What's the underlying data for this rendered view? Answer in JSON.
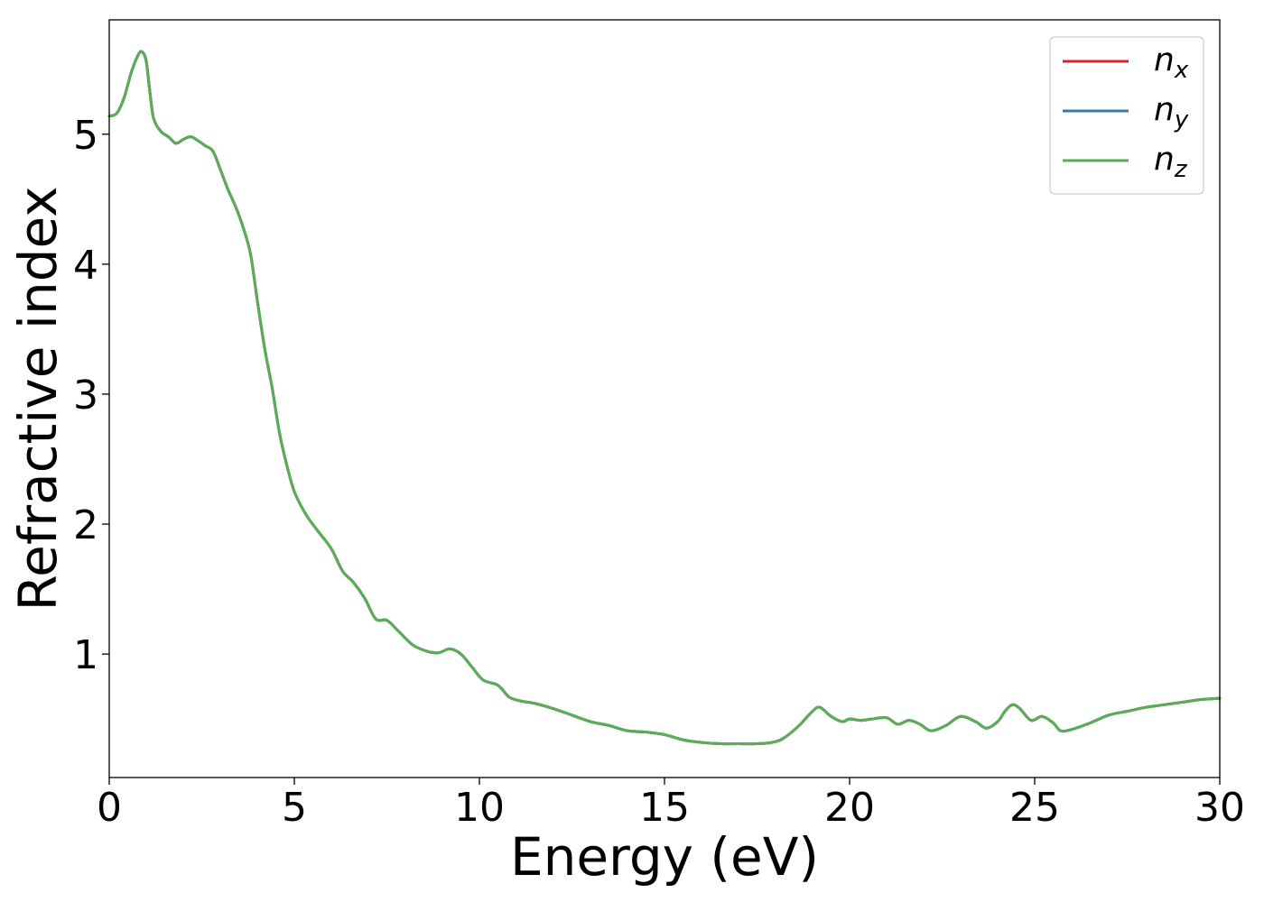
{
  "chart_data": {
    "type": "line",
    "title": "",
    "xlabel": "Energy (eV)",
    "ylabel": "Refractive index",
    "xlim": [
      0,
      30
    ],
    "ylim": [
      0.05,
      5.88
    ],
    "x_ticks": [
      "0",
      "5",
      "10",
      "15",
      "20",
      "25",
      "30"
    ],
    "y_ticks": [
      "1",
      "2",
      "3",
      "4",
      "5"
    ],
    "grid": false,
    "legend_position": "top-right",
    "x": [
      0,
      0.2,
      0.4,
      0.6,
      0.8,
      0.9,
      1.0,
      1.1,
      1.2,
      1.4,
      1.6,
      1.8,
      2.0,
      2.2,
      2.4,
      2.6,
      2.8,
      3.0,
      3.2,
      3.5,
      3.8,
      4.0,
      4.2,
      4.4,
      4.6,
      4.8,
      5.0,
      5.3,
      5.6,
      6.0,
      6.3,
      6.6,
      6.9,
      7.2,
      7.5,
      7.8,
      8.2,
      8.6,
      8.9,
      9.2,
      9.5,
      9.8,
      10.1,
      10.5,
      10.8,
      11.1,
      11.5,
      12.0,
      12.5,
      13.0,
      13.5,
      14.0,
      14.5,
      15.0,
      15.5,
      16.0,
      16.5,
      17.0,
      17.5,
      17.9,
      18.2,
      18.6,
      19.0,
      19.2,
      19.5,
      19.8,
      20.0,
      20.3,
      20.6,
      21.0,
      21.3,
      21.6,
      21.9,
      22.2,
      22.6,
      23.0,
      23.4,
      23.7,
      24.0,
      24.2,
      24.4,
      24.6,
      24.9,
      25.2,
      25.5,
      25.7,
      26.0,
      26.5,
      27.0,
      27.5,
      28.0,
      28.5,
      29.0,
      29.5,
      30.0
    ],
    "series": [
      {
        "name": "n_x",
        "label_base": "n",
        "label_sub": "x",
        "color": "#d62728",
        "values": [
          5.14,
          5.16,
          5.28,
          5.48,
          5.62,
          5.63,
          5.56,
          5.32,
          5.12,
          5.02,
          4.98,
          4.93,
          4.96,
          4.98,
          4.95,
          4.91,
          4.87,
          4.73,
          4.58,
          4.38,
          4.1,
          3.72,
          3.35,
          3.05,
          2.7,
          2.45,
          2.25,
          2.08,
          1.96,
          1.81,
          1.64,
          1.55,
          1.43,
          1.27,
          1.26,
          1.18,
          1.07,
          1.02,
          1.01,
          1.04,
          1.0,
          0.9,
          0.8,
          0.76,
          0.67,
          0.64,
          0.62,
          0.58,
          0.53,
          0.48,
          0.45,
          0.41,
          0.4,
          0.38,
          0.34,
          0.32,
          0.31,
          0.31,
          0.31,
          0.32,
          0.35,
          0.44,
          0.56,
          0.59,
          0.52,
          0.48,
          0.5,
          0.49,
          0.5,
          0.51,
          0.46,
          0.49,
          0.46,
          0.41,
          0.45,
          0.52,
          0.48,
          0.43,
          0.48,
          0.56,
          0.61,
          0.58,
          0.49,
          0.52,
          0.47,
          0.41,
          0.42,
          0.47,
          0.53,
          0.56,
          0.59,
          0.61,
          0.63,
          0.65,
          0.66
        ]
      },
      {
        "name": "n_y",
        "label_base": "n",
        "label_sub": "y",
        "color": "#3a7aaa",
        "values": [
          5.14,
          5.16,
          5.28,
          5.48,
          5.62,
          5.63,
          5.56,
          5.32,
          5.12,
          5.02,
          4.98,
          4.93,
          4.96,
          4.98,
          4.95,
          4.91,
          4.87,
          4.73,
          4.58,
          4.38,
          4.1,
          3.72,
          3.35,
          3.05,
          2.7,
          2.45,
          2.25,
          2.08,
          1.96,
          1.81,
          1.64,
          1.55,
          1.43,
          1.27,
          1.26,
          1.18,
          1.07,
          1.02,
          1.01,
          1.04,
          1.0,
          0.9,
          0.8,
          0.76,
          0.67,
          0.64,
          0.62,
          0.58,
          0.53,
          0.48,
          0.45,
          0.41,
          0.4,
          0.38,
          0.34,
          0.32,
          0.31,
          0.31,
          0.31,
          0.32,
          0.35,
          0.44,
          0.56,
          0.59,
          0.52,
          0.48,
          0.5,
          0.49,
          0.5,
          0.51,
          0.46,
          0.49,
          0.46,
          0.41,
          0.45,
          0.52,
          0.48,
          0.43,
          0.48,
          0.56,
          0.61,
          0.58,
          0.49,
          0.52,
          0.47,
          0.41,
          0.42,
          0.47,
          0.53,
          0.56,
          0.59,
          0.61,
          0.63,
          0.65,
          0.66
        ]
      },
      {
        "name": "n_z",
        "label_base": "n",
        "label_sub": "z",
        "color": "#5aad56",
        "values": [
          5.14,
          5.16,
          5.28,
          5.48,
          5.62,
          5.63,
          5.56,
          5.32,
          5.12,
          5.02,
          4.98,
          4.93,
          4.96,
          4.98,
          4.95,
          4.91,
          4.87,
          4.73,
          4.58,
          4.38,
          4.1,
          3.72,
          3.35,
          3.05,
          2.7,
          2.45,
          2.25,
          2.08,
          1.96,
          1.81,
          1.64,
          1.55,
          1.43,
          1.27,
          1.26,
          1.18,
          1.07,
          1.02,
          1.01,
          1.04,
          1.0,
          0.9,
          0.8,
          0.76,
          0.67,
          0.64,
          0.62,
          0.58,
          0.53,
          0.48,
          0.45,
          0.41,
          0.4,
          0.38,
          0.34,
          0.32,
          0.31,
          0.31,
          0.31,
          0.32,
          0.35,
          0.44,
          0.56,
          0.59,
          0.52,
          0.48,
          0.5,
          0.49,
          0.5,
          0.51,
          0.46,
          0.49,
          0.46,
          0.41,
          0.45,
          0.52,
          0.48,
          0.43,
          0.48,
          0.56,
          0.61,
          0.58,
          0.49,
          0.52,
          0.47,
          0.41,
          0.42,
          0.47,
          0.53,
          0.56,
          0.59,
          0.61,
          0.63,
          0.65,
          0.66
        ]
      }
    ]
  }
}
